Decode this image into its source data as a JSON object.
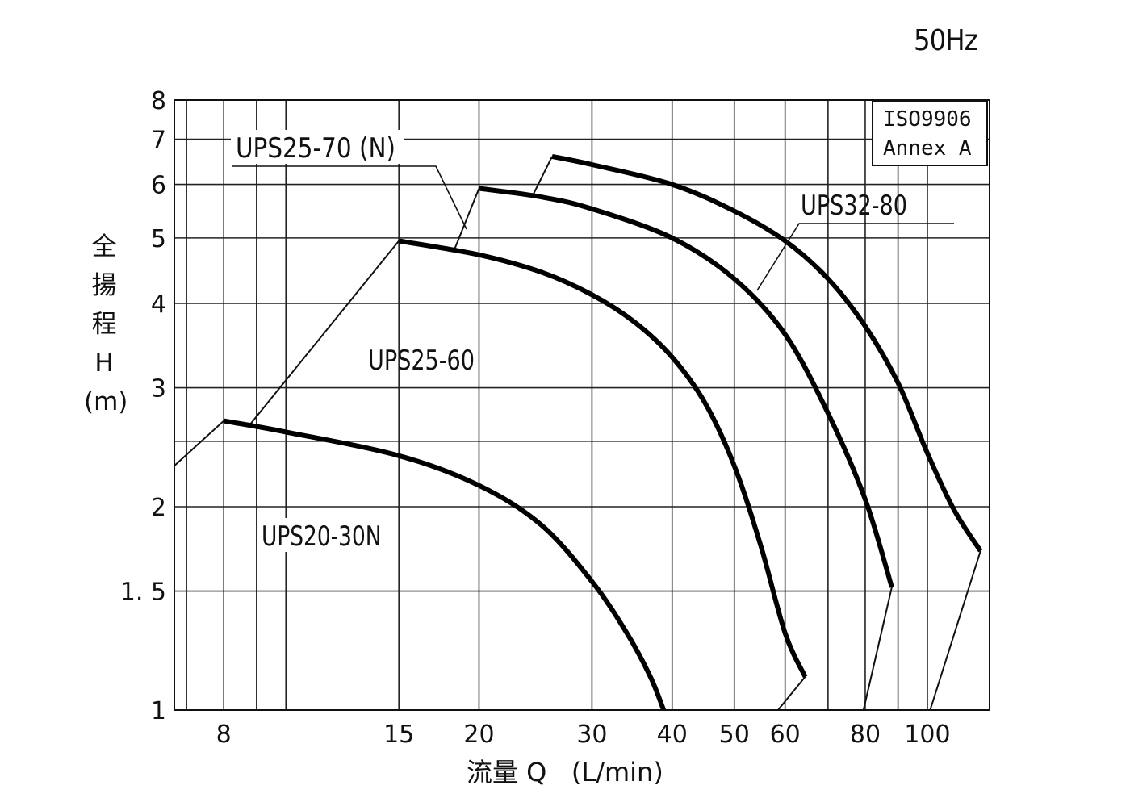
{
  "frequency_label": "50Hz",
  "standard_box": {
    "line1": "ISO9906",
    "line2": "Annex A"
  },
  "y_axis_title": {
    "chars": [
      "全",
      "揚",
      "程",
      "H",
      "(m)"
    ]
  },
  "x_axis_title": "流量 Q   (L/min)",
  "chart_data": {
    "type": "line",
    "xscale": "log",
    "yscale": "log",
    "xlim": [
      6.7,
      125
    ],
    "ylim": [
      1,
      8
    ],
    "x_ticks": [
      8,
      15,
      20,
      30,
      40,
      50,
      60,
      80,
      100
    ],
    "x_tick_labels": [
      "8",
      "15",
      "20",
      "30",
      "40",
      "50",
      "60",
      "80",
      "100"
    ],
    "x_minor_grid": [
      7,
      9,
      10,
      70,
      90
    ],
    "y_ticks": [
      1,
      1.5,
      2,
      3,
      4,
      5,
      6,
      7,
      8
    ],
    "y_tick_labels": [
      "1",
      "1. 5",
      "2",
      "3",
      "4",
      "5",
      "6",
      "7",
      "8"
    ],
    "y_minor_grid": [
      2.5
    ],
    "grid": true,
    "series": [
      {
        "name": "UPS20-30N",
        "points": [
          [
            8,
            2.68
          ],
          [
            10,
            2.58
          ],
          [
            15,
            2.38
          ],
          [
            20,
            2.15
          ],
          [
            25,
            1.88
          ],
          [
            30,
            1.55
          ],
          [
            34,
            1.3
          ],
          [
            37,
            1.12
          ],
          [
            38.8,
            1.0
          ]
        ],
        "range_line": [
          [
            6.7,
            2.3
          ],
          [
            8,
            2.68
          ]
        ]
      },
      {
        "name": "UPS25-60",
        "points": [
          [
            15,
            4.95
          ],
          [
            20,
            4.72
          ],
          [
            25,
            4.45
          ],
          [
            30,
            4.12
          ],
          [
            35,
            3.75
          ],
          [
            40,
            3.33
          ],
          [
            45,
            2.85
          ],
          [
            50,
            2.3
          ],
          [
            55,
            1.75
          ],
          [
            60,
            1.3
          ],
          [
            64.5,
            1.12
          ]
        ],
        "range_line": [
          [
            8.8,
            2.65
          ],
          [
            15,
            4.95
          ]
        ],
        "range_line_end": [
          [
            64.5,
            1.12
          ],
          [
            58.5,
            1.0
          ]
        ]
      },
      {
        "name": "UPS25-70 (N)",
        "points": [
          [
            20,
            5.92
          ],
          [
            25,
            5.75
          ],
          [
            30,
            5.52
          ],
          [
            40,
            5.0
          ],
          [
            50,
            4.35
          ],
          [
            60,
            3.6
          ],
          [
            70,
            2.75
          ],
          [
            80,
            2.05
          ],
          [
            88,
            1.52
          ]
        ],
        "range_line": [
          [
            18.3,
            4.8
          ],
          [
            20,
            5.92
          ]
        ],
        "range_line_end": [
          [
            88,
            1.52
          ],
          [
            79.5,
            1.0
          ]
        ]
      },
      {
        "name": "UPS32-80",
        "points": [
          [
            26,
            6.6
          ],
          [
            30,
            6.42
          ],
          [
            40,
            6.0
          ],
          [
            50,
            5.48
          ],
          [
            60,
            4.95
          ],
          [
            70,
            4.35
          ],
          [
            80,
            3.7
          ],
          [
            90,
            3.05
          ],
          [
            100,
            2.4
          ],
          [
            110,
            1.98
          ],
          [
            121,
            1.72
          ]
        ],
        "range_line": [
          [
            24.3,
            5.8
          ],
          [
            26,
            6.6
          ]
        ],
        "range_line_end": [
          [
            121,
            1.72
          ],
          [
            101,
            1.0
          ]
        ]
      }
    ]
  }
}
